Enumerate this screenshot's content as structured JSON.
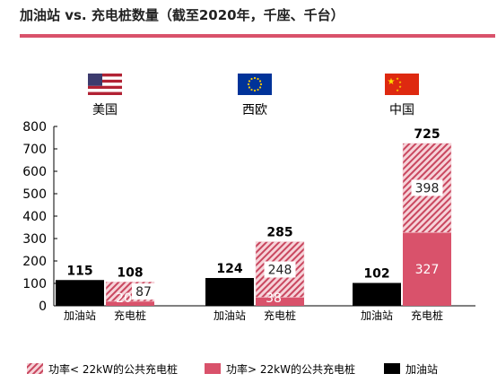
{
  "title": "加油站 vs. 充电桩数量（截至2020年，千座、千台）",
  "colors": {
    "accent": "#d9526b",
    "station": "#000000",
    "hatch_bg": "#f6d3d9",
    "hatch_fg": "#c9475f"
  },
  "regions": [
    {
      "name": "美国",
      "flag": "us-flag-icon"
    },
    {
      "name": "西欧",
      "flag": "eu-flag-icon"
    },
    {
      "name": "中国",
      "flag": "china-flag-icon"
    }
  ],
  "chart_data": {
    "type": "bar",
    "stacked": true,
    "ylim": [
      0,
      800
    ],
    "yticks": [
      0,
      100,
      200,
      300,
      400,
      500,
      600,
      700,
      800
    ],
    "groups": [
      {
        "region": "美国",
        "station": 115,
        "fast": 20,
        "slow": 87,
        "total": 108
      },
      {
        "region": "西欧",
        "station": 124,
        "fast": 38,
        "slow": 248,
        "total": 285
      },
      {
        "region": "中国",
        "station": 102,
        "fast": 327,
        "slow": 398,
        "total": 725
      }
    ],
    "bar_labels": [
      "加油站",
      "充电桩"
    ],
    "legend": [
      {
        "key": "slow",
        "label": "功率< 22kW的公共充电桩"
      },
      {
        "key": "fast",
        "label": "功率> 22kW的公共充电桩"
      },
      {
        "key": "station",
        "label": "加油站"
      }
    ],
    "legend_position": "bottom"
  }
}
